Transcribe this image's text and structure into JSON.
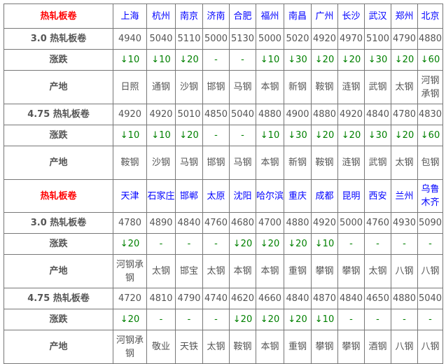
{
  "colors": {
    "title": "#ff0000",
    "city": "#0000ff",
    "change": "#008000"
  },
  "blocks": [
    {
      "title": "热轧板卷",
      "cities": [
        "上海",
        "杭州",
        "南京",
        "济南",
        "合肥",
        "福州",
        "南昌",
        "广州",
        "长沙",
        "武汉",
        "郑州",
        "北京"
      ],
      "rows": [
        {
          "label": "3.0 热轧板卷",
          "type": "price",
          "values": [
            "4940",
            "5040",
            "5110",
            "5000",
            "5130",
            "5000",
            "5020",
            "4920",
            "4970",
            "5100",
            "4790",
            "4880"
          ]
        },
        {
          "label": "涨跌",
          "type": "change",
          "values": [
            "↓10",
            "↓10",
            "↓20",
            "-",
            "-",
            "↓10",
            "↓30",
            "↓20",
            "↓20",
            "↓30",
            "↓20",
            "↓60"
          ]
        },
        {
          "label": "产地",
          "type": "origin",
          "values": [
            "日照",
            "通钢",
            "沙钢",
            "邯钢",
            "马钢",
            "本钢",
            "新钢",
            "鞍钢",
            "涟钢",
            "武钢",
            "太钢",
            "河钢承钢"
          ]
        },
        {
          "label": "4.75 热轧板卷",
          "type": "price",
          "values": [
            "4920",
            "4920",
            "5010",
            "4850",
            "5040",
            "4880",
            "4900",
            "4880",
            "4920",
            "4840",
            "4780",
            "4830"
          ]
        },
        {
          "label": "涨跌",
          "type": "change",
          "values": [
            "↓10",
            "↓10",
            "↓20",
            "-",
            "-",
            "↓10",
            "↓30",
            "↓20",
            "↓20",
            "↓30",
            "↓20",
            "↓60"
          ]
        },
        {
          "label": "产地",
          "type": "origin",
          "values": [
            "鞍钢",
            "沙钢",
            "马钢",
            "邯钢",
            "马钢",
            "本钢",
            "新钢",
            "鞍钢",
            "涟钢",
            "武钢",
            "太钢",
            "包钢"
          ]
        }
      ]
    },
    {
      "title": "热轧板卷",
      "cities": [
        "天津",
        "石家庄",
        "邯郸",
        "太原",
        "沈阳",
        "哈尔滨",
        "重庆",
        "成都",
        "昆明",
        "西安",
        "兰州",
        "乌鲁木齐"
      ],
      "rows": [
        {
          "label": "3.0 热轧板卷",
          "type": "price",
          "values": [
            "4780",
            "4890",
            "4840",
            "4760",
            "4680",
            "4700",
            "4880",
            "4920",
            "5000",
            "4760",
            "4930",
            "5090"
          ]
        },
        {
          "label": "涨跌",
          "type": "change",
          "values": [
            "↓20",
            "-",
            "-",
            "-",
            "↓20",
            "↓20",
            "↓20",
            "↓10",
            "-",
            "-",
            "-",
            "-"
          ]
        },
        {
          "label": "产地",
          "type": "origin",
          "values": [
            "河钢承钢",
            "太钢",
            "邯宝",
            "太钢",
            "本钢",
            "本钢",
            "重钢",
            "攀钢",
            "攀钢",
            "太钢",
            "八钢",
            "八钢"
          ]
        },
        {
          "label": "4.75 热轧板卷",
          "type": "price",
          "values": [
            "4720",
            "4810",
            "4790",
            "4740",
            "4620",
            "4660",
            "4840",
            "4870",
            "4840",
            "4650",
            "4880",
            "5040"
          ]
        },
        {
          "label": "涨跌",
          "type": "change",
          "values": [
            "↓20",
            "-",
            "-",
            "-",
            "↓20",
            "↓20",
            "↓20",
            "↓10",
            "-",
            "-",
            "-",
            "-"
          ]
        },
        {
          "label": "产地",
          "type": "origin",
          "values": [
            "河钢承钢",
            "敬业",
            "天铁",
            "太钢",
            "鞍钢",
            "本钢",
            "重钢",
            "攀钢",
            "攀钢",
            "酒钢",
            "八钢",
            "八钢"
          ]
        }
      ]
    }
  ]
}
